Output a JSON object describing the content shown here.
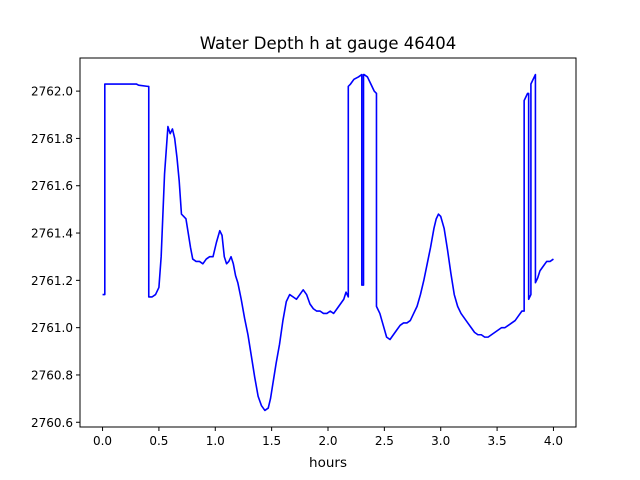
{
  "chart_data": {
    "type": "line",
    "title": "Water Depth h at gauge 46404",
    "xlabel": "hours",
    "ylabel": "",
    "xlim": [
      -0.2,
      4.2
    ],
    "ylim": [
      2760.58,
      2762.14
    ],
    "xticks": [
      0.0,
      0.5,
      1.0,
      1.5,
      2.0,
      2.5,
      3.0,
      3.5,
      4.0
    ],
    "xtick_labels": [
      "0.0",
      "0.5",
      "1.0",
      "1.5",
      "2.0",
      "2.5",
      "3.0",
      "3.5",
      "4.0"
    ],
    "yticks": [
      2760.6,
      2760.8,
      2761.0,
      2761.2,
      2761.4,
      2761.6,
      2761.8,
      2762.0
    ],
    "ytick_labels": [
      "2760.6",
      "2760.8",
      "2761.0",
      "2761.2",
      "2761.4",
      "2761.6",
      "2761.8",
      "2762.0"
    ],
    "grid": false,
    "legend": "none",
    "series": [
      {
        "color": "#0000ff",
        "x": [
          0.0,
          0.02,
          0.02,
          0.1,
          0.2,
          0.3,
          0.32,
          0.4,
          0.41,
          0.41,
          0.44,
          0.47,
          0.5,
          0.52,
          0.55,
          0.58,
          0.6,
          0.62,
          0.64,
          0.66,
          0.68,
          0.7,
          0.72,
          0.74,
          0.76,
          0.78,
          0.8,
          0.83,
          0.86,
          0.89,
          0.92,
          0.95,
          0.98,
          1.01,
          1.04,
          1.06,
          1.08,
          1.1,
          1.12,
          1.14,
          1.16,
          1.18,
          1.2,
          1.23,
          1.26,
          1.29,
          1.32,
          1.35,
          1.38,
          1.41,
          1.44,
          1.47,
          1.49,
          1.51,
          1.54,
          1.57,
          1.6,
          1.63,
          1.66,
          1.69,
          1.72,
          1.75,
          1.78,
          1.81,
          1.84,
          1.87,
          1.9,
          1.93,
          1.96,
          1.99,
          2.02,
          2.05,
          2.08,
          2.11,
          2.14,
          2.16,
          2.18,
          2.18,
          2.2,
          2.23,
          2.27,
          2.3,
          2.3,
          2.315,
          2.315,
          2.32,
          2.35,
          2.38,
          2.41,
          2.43,
          2.43,
          2.46,
          2.49,
          2.52,
          2.55,
          2.58,
          2.61,
          2.64,
          2.67,
          2.7,
          2.73,
          2.76,
          2.79,
          2.82,
          2.85,
          2.88,
          2.91,
          2.94,
          2.96,
          2.98,
          3.0,
          3.03,
          3.06,
          3.09,
          3.12,
          3.15,
          3.18,
          3.21,
          3.24,
          3.27,
          3.3,
          3.33,
          3.36,
          3.39,
          3.42,
          3.45,
          3.48,
          3.51,
          3.54,
          3.57,
          3.6,
          3.63,
          3.66,
          3.69,
          3.72,
          3.74,
          3.74,
          3.77,
          3.78,
          3.78,
          3.8,
          3.8,
          3.84,
          3.84,
          3.86,
          3.88,
          3.91,
          3.94,
          3.97,
          4.0
        ],
        "y": [
          2761.14,
          2761.14,
          2762.03,
          2762.03,
          2762.03,
          2762.03,
          2762.025,
          2762.02,
          2762.02,
          2761.13,
          2761.13,
          2761.14,
          2761.17,
          2761.3,
          2761.65,
          2761.85,
          2761.82,
          2761.84,
          2761.8,
          2761.72,
          2761.62,
          2761.48,
          2761.47,
          2761.46,
          2761.4,
          2761.34,
          2761.29,
          2761.28,
          2761.28,
          2761.27,
          2761.29,
          2761.3,
          2761.3,
          2761.36,
          2761.41,
          2761.39,
          2761.3,
          2761.27,
          2761.28,
          2761.3,
          2761.27,
          2761.22,
          2761.19,
          2761.12,
          2761.04,
          2760.97,
          2760.88,
          2760.79,
          2760.71,
          2760.67,
          2760.65,
          2760.66,
          2760.7,
          2760.76,
          2760.85,
          2760.93,
          2761.03,
          2761.11,
          2761.14,
          2761.13,
          2761.12,
          2761.14,
          2761.16,
          2761.14,
          2761.1,
          2761.08,
          2761.07,
          2761.07,
          2761.06,
          2761.06,
          2761.07,
          2761.06,
          2761.08,
          2761.1,
          2761.12,
          2761.15,
          2761.13,
          2762.02,
          2762.03,
          2762.05,
          2762.06,
          2762.07,
          2761.18,
          2761.18,
          2762.07,
          2762.07,
          2762.06,
          2762.03,
          2762.0,
          2761.99,
          2761.09,
          2761.06,
          2761.01,
          2760.96,
          2760.95,
          2760.97,
          2760.99,
          2761.01,
          2761.02,
          2761.02,
          2761.03,
          2761.06,
          2761.09,
          2761.14,
          2761.2,
          2761.27,
          2761.34,
          2761.42,
          2761.46,
          2761.48,
          2761.47,
          2761.42,
          2761.33,
          2761.23,
          2761.14,
          2761.09,
          2761.06,
          2761.04,
          2761.02,
          2761.0,
          2760.98,
          2760.97,
          2760.97,
          2760.96,
          2760.96,
          2760.97,
          2760.98,
          2760.99,
          2761.0,
          2761.0,
          2761.01,
          2761.02,
          2761.03,
          2761.05,
          2761.07,
          2761.07,
          2761.96,
          2761.99,
          2761.99,
          2761.12,
          2761.14,
          2762.03,
          2762.07,
          2761.19,
          2761.21,
          2761.24,
          2761.26,
          2761.28,
          2761.28,
          2761.29
        ]
      }
    ]
  }
}
